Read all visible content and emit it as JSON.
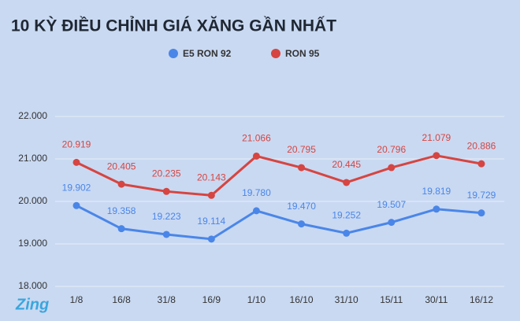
{
  "chart_data": {
    "type": "line",
    "title": "10 KỲ ĐIỀU CHỈNH GIÁ XĂNG GẦN NHẤT",
    "categories": [
      "1/8",
      "16/8",
      "31/8",
      "16/9",
      "1/10",
      "16/10",
      "31/10",
      "15/11",
      "30/11",
      "16/12"
    ],
    "series": [
      {
        "name": "E5 RON 92",
        "color": "#4a86e8",
        "values": [
          19902,
          19358,
          19223,
          19114,
          19780,
          19470,
          19252,
          19507,
          19819,
          19729
        ],
        "value_labels": [
          "19.902",
          "19.358",
          "19.223",
          "19.114",
          "19.780",
          "19.470",
          "19.252",
          "19.507",
          "19.819",
          "19.729"
        ]
      },
      {
        "name": "RON 95",
        "color": "#d64541",
        "values": [
          20919,
          20405,
          20235,
          20143,
          21066,
          20795,
          20445,
          20796,
          21079,
          20886
        ],
        "value_labels": [
          "20.919",
          "20.405",
          "20.235",
          "20.143",
          "21.066",
          "20.795",
          "20.445",
          "20.796",
          "21.079",
          "20.886"
        ]
      }
    ],
    "ylim": [
      18000,
      22000
    ],
    "yticks": [
      {
        "value": 18000,
        "label": "18.000"
      },
      {
        "value": 19000,
        "label": "19.000"
      },
      {
        "value": 20000,
        "label": "20.000"
      },
      {
        "value": 21000,
        "label": "21.000"
      },
      {
        "value": 22000,
        "label": "22.000"
      }
    ],
    "grid": true,
    "legend": "top",
    "watermark": "Zing"
  }
}
